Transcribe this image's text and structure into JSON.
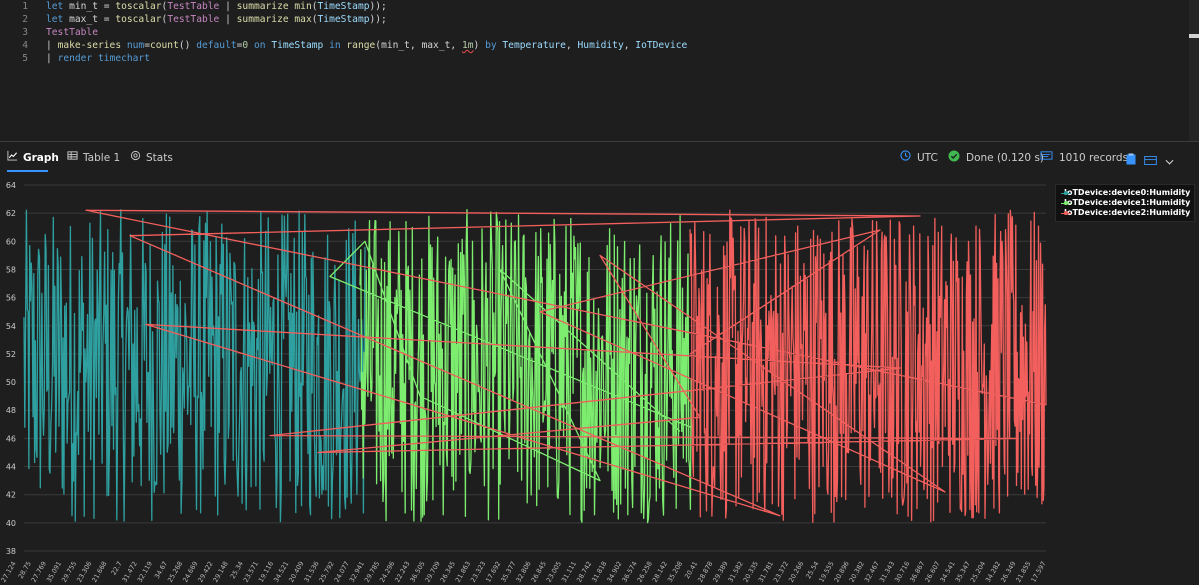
{
  "editor": {
    "lines": [
      {
        "n": "1",
        "tokens": [
          [
            "kw",
            "let "
          ],
          [
            "op",
            "min_t "
          ],
          [
            "op",
            "= "
          ],
          [
            "fn",
            "toscalar"
          ],
          [
            "op",
            "("
          ],
          [
            "tb",
            "TestTable"
          ],
          [
            "op",
            " | "
          ],
          [
            "fn",
            "summarize "
          ],
          [
            "fn",
            "min"
          ],
          [
            "op",
            "("
          ],
          [
            "col",
            "TimeStamp"
          ],
          [
            "op",
            "));"
          ]
        ]
      },
      {
        "n": "2",
        "tokens": [
          [
            "kw",
            "let "
          ],
          [
            "op",
            "max_t "
          ],
          [
            "op",
            "= "
          ],
          [
            "fn",
            "toscalar"
          ],
          [
            "op",
            "("
          ],
          [
            "tb",
            "TestTable"
          ],
          [
            "op",
            " | "
          ],
          [
            "fn",
            "summarize "
          ],
          [
            "fn",
            "max"
          ],
          [
            "op",
            "("
          ],
          [
            "col",
            "TimeStamp"
          ],
          [
            "op",
            "));"
          ]
        ]
      },
      {
        "n": "3",
        "tokens": [
          [
            "tb",
            "TestTable"
          ]
        ]
      },
      {
        "n": "4",
        "tokens": [
          [
            "op",
            "| "
          ],
          [
            "fn",
            "make-series "
          ],
          [
            "kw",
            "num"
          ],
          [
            "op",
            "="
          ],
          [
            "fn",
            "count"
          ],
          [
            "op",
            "() "
          ],
          [
            "kw",
            "default"
          ],
          [
            "op",
            "="
          ],
          [
            "num",
            "0"
          ],
          [
            "op",
            " "
          ],
          [
            "kw",
            "on "
          ],
          [
            "col",
            "TimeStamp "
          ],
          [
            "kw",
            "in "
          ],
          [
            "fn",
            "range"
          ],
          [
            "op",
            "("
          ],
          [
            "op",
            "min_t, max_t, "
          ],
          [
            "num",
            "1m"
          ],
          [
            "op",
            ") "
          ],
          [
            "kw",
            "by "
          ],
          [
            "col",
            "Temperature"
          ],
          [
            "op",
            ", "
          ],
          [
            "col",
            "Humidity"
          ],
          [
            "op",
            ", "
          ],
          [
            "col",
            "IoTDevice"
          ]
        ]
      },
      {
        "n": "5",
        "tokens": [
          [
            "op",
            "| "
          ],
          [
            "kw",
            "render "
          ],
          [
            "kw",
            "timechart"
          ]
        ]
      }
    ]
  },
  "toolbar": {
    "tabs": [
      {
        "id": "graph",
        "label": "Graph",
        "icon": "line-chart-icon"
      },
      {
        "id": "table",
        "label": "Table 1",
        "icon": "table-icon"
      },
      {
        "id": "stats",
        "label": "Stats",
        "icon": "stats-icon"
      }
    ],
    "timezone": "UTC",
    "status": "Done (0.120 s)",
    "records": "1010 records",
    "colors": {
      "accent": "#3794ff",
      "success": "#3fb950"
    }
  },
  "chart_data": {
    "type": "line",
    "title": "",
    "xlabel": "",
    "ylabel": "",
    "ylim": [
      38,
      64
    ],
    "yticks": [
      38,
      40,
      42,
      44,
      46,
      48,
      50,
      52,
      54,
      56,
      58,
      60,
      62,
      64
    ],
    "grid": true,
    "legend_position": "top-right",
    "xticks": [
      "27.124",
      "28.75",
      "27.769",
      "35.091",
      "29.755",
      "23.306",
      "21.668",
      "22.7",
      "31.472",
      "32.119",
      "34.67",
      "25.268",
      "24.669",
      "29.422",
      "29.148",
      "25.34",
      "23.571",
      "19.116",
      "34.521",
      "20.409",
      "31.536",
      "25.792",
      "24.077",
      "32.941",
      "29.785",
      "24.296",
      "22.243",
      "36.505",
      "29.709",
      "26.345",
      "21.863",
      "23.323",
      "17.692",
      "35.377",
      "32.806",
      "26.845",
      "23.005",
      "31.111",
      "28.742",
      "31.818",
      "34.902",
      "36.574",
      "26.258",
      "28.142",
      "35.208",
      "20.41",
      "28.878",
      "29.389",
      "31.582",
      "20.335",
      "31.781",
      "23.372",
      "20.266",
      "25.54",
      "19.555",
      "20.896",
      "20.382",
      "32.467",
      "31.343",
      "30.716",
      "36.867",
      "26.607",
      "34.541",
      "35.347",
      "25.204",
      "34.282",
      "26.349",
      "21.855",
      "17.597"
    ],
    "series": [
      {
        "name": "IoTDevice:device0:Humidity",
        "color": "#2fa0a0",
        "points": 420
      },
      {
        "name": "IoTDevice:device1:Humidity",
        "color": "#7ded6f",
        "points": 420
      },
      {
        "name": "IoTDevice:device2:Humidity",
        "color": "#f25f5c",
        "points": 520
      }
    ]
  }
}
